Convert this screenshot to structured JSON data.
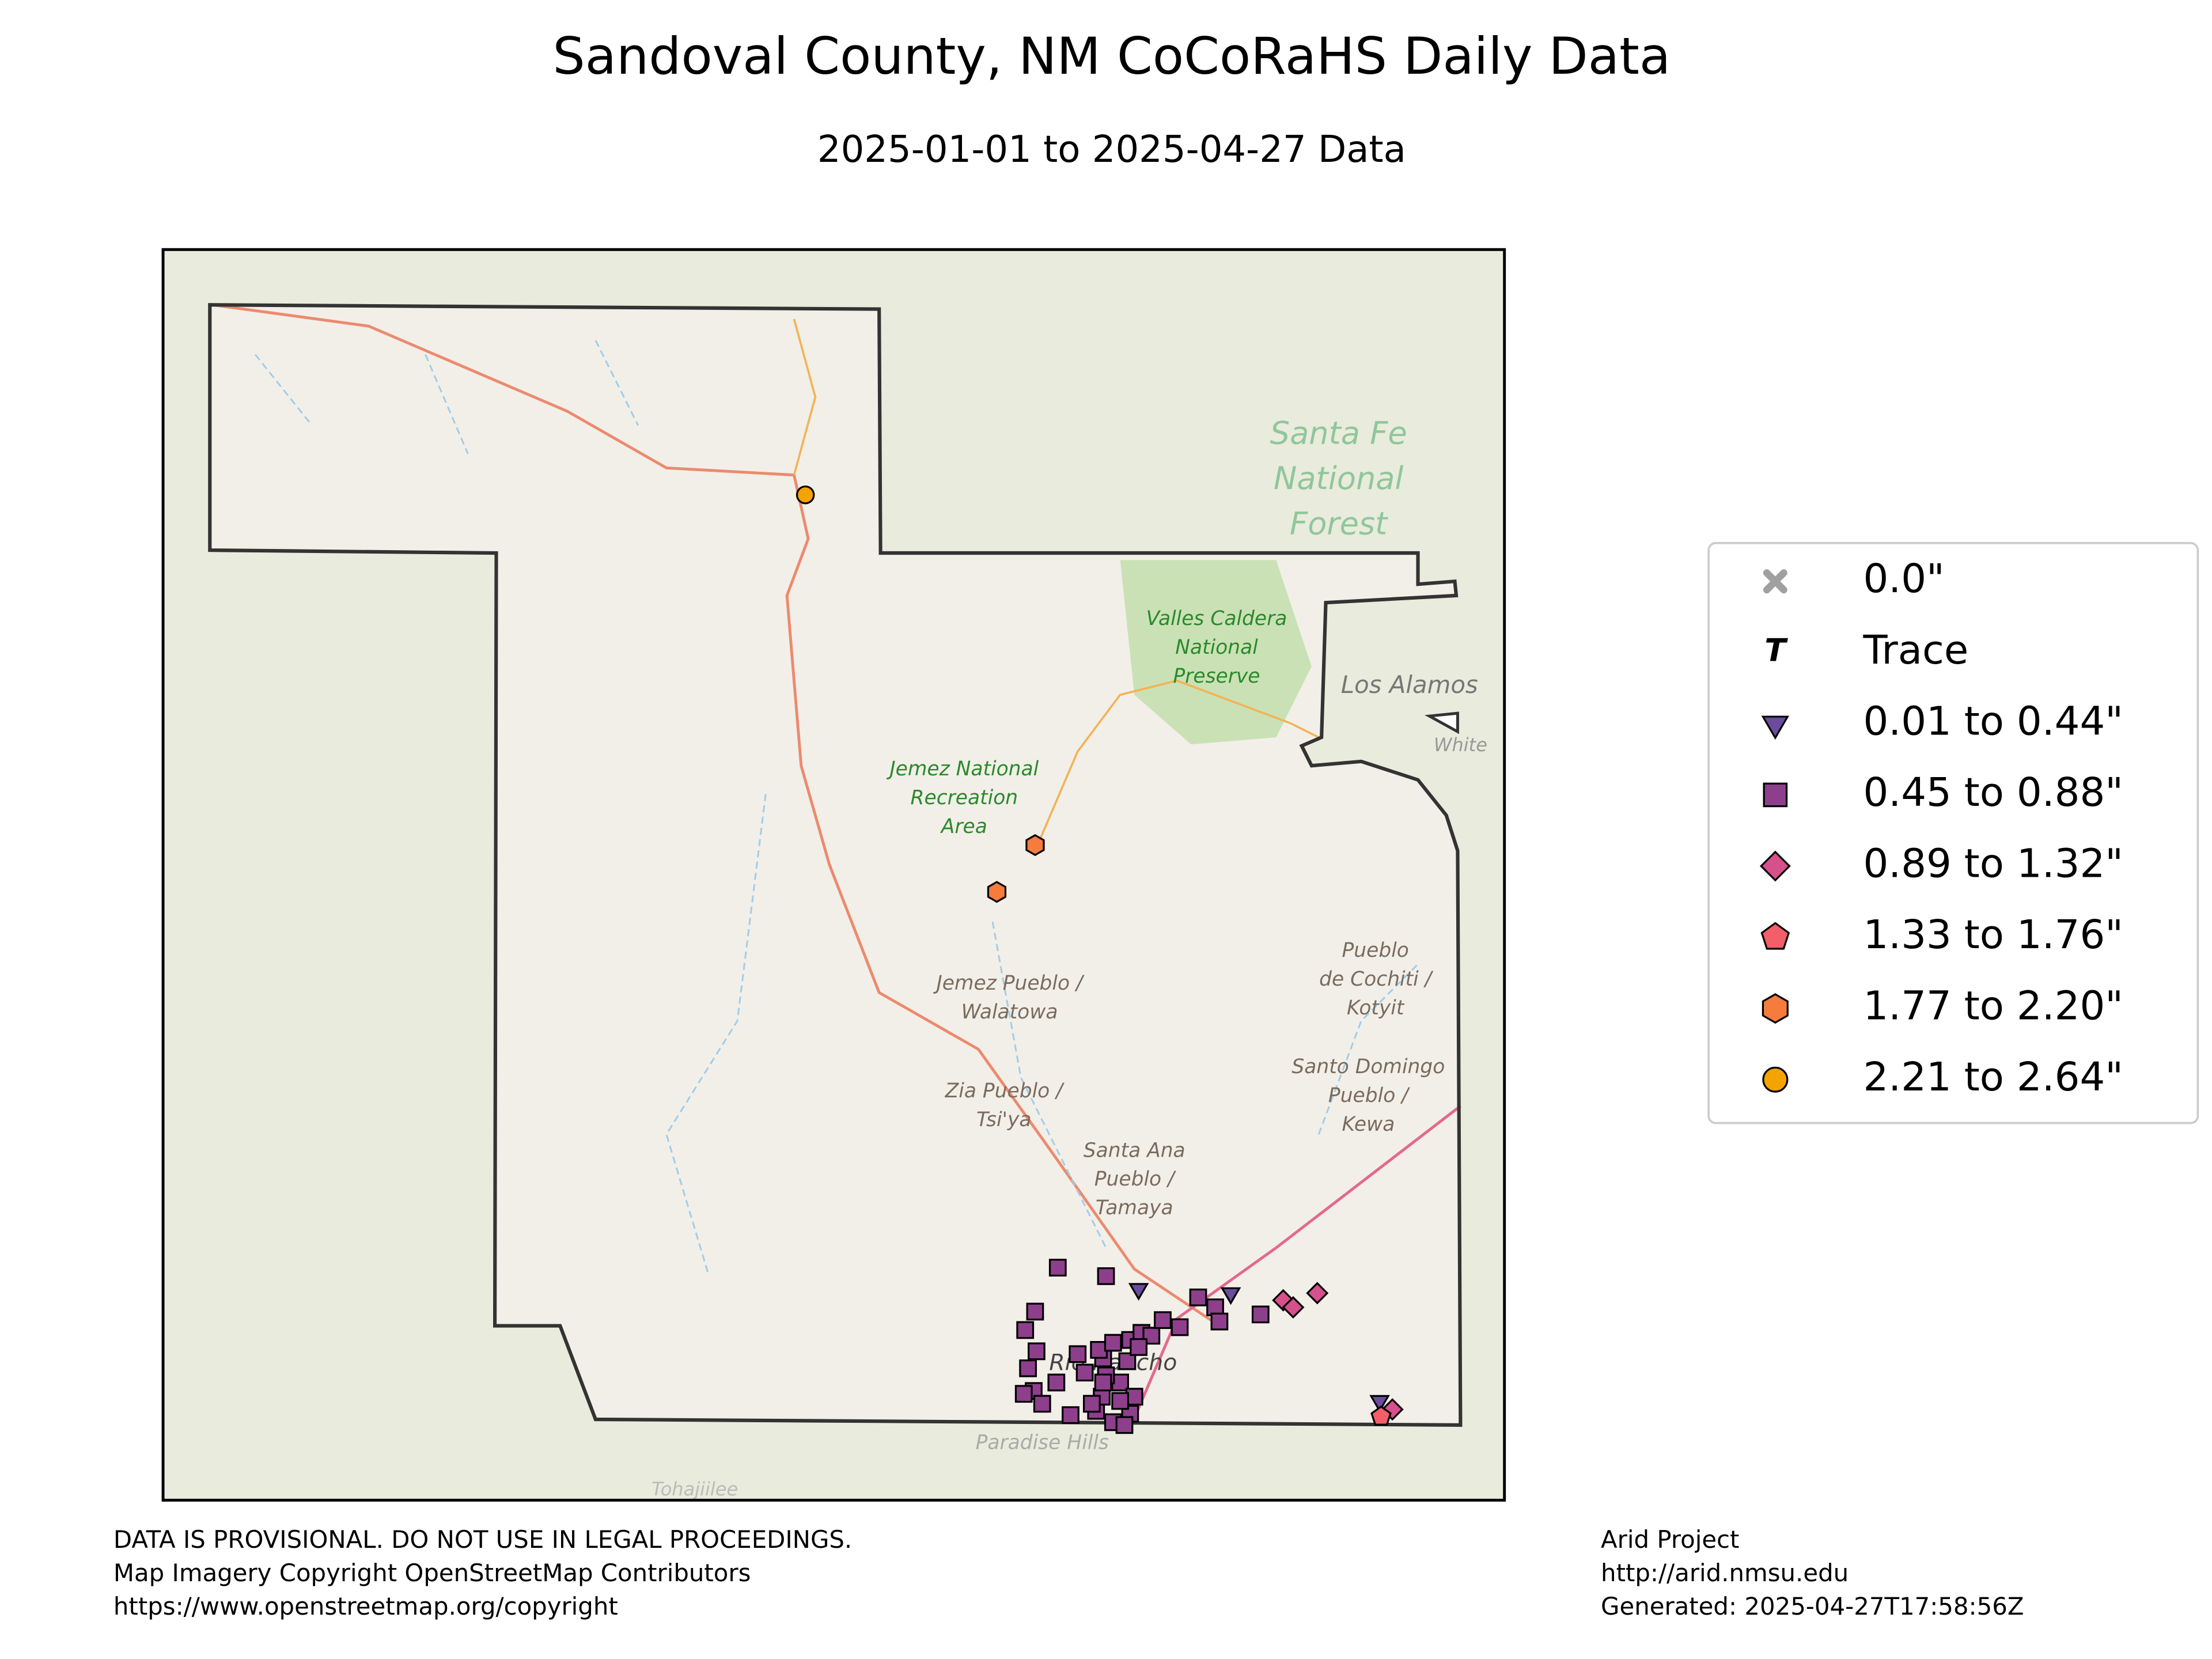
{
  "title": "Sandoval County, NM CoCoRaHS Daily Data",
  "subtitle": "2025-01-01 to 2025-04-27 Data",
  "map_labels": [
    {
      "lines": [
        "Santa Fe",
        "National",
        "Forest"
      ]
    },
    {
      "lines": [
        "Valles Caldera",
        "National",
        "Preserve"
      ]
    },
    {
      "lines": [
        "Jemez National",
        "Recreation",
        "Area"
      ]
    },
    {
      "lines": [
        "Jemez Pueblo /",
        "Walatowa"
      ]
    },
    {
      "lines": [
        "Zia Pueblo /",
        "Tsi'ya"
      ]
    },
    {
      "lines": [
        "Santa Ana",
        "Pueblo /",
        "Tamaya"
      ]
    },
    {
      "lines": [
        "Pueblo",
        "de Cochiti /",
        "Kotyit"
      ]
    },
    {
      "lines": [
        "Santo Domingo",
        "Pueblo /",
        "Kewa"
      ]
    },
    {
      "lines": [
        "Los Alamos"
      ]
    },
    {
      "lines": [
        "White"
      ]
    },
    {
      "lines": [
        "Rio Rancho"
      ]
    },
    {
      "lines": [
        "Paradise Hills"
      ]
    },
    {
      "lines": [
        "Tohajiilee"
      ]
    }
  ],
  "legend": {
    "entries": [
      {
        "label": "0.0\"",
        "marker": "x",
        "color": "#a0a0a0"
      },
      {
        "label": "Trace",
        "marker": "T",
        "color": "#000000"
      },
      {
        "label": "0.01 to 0.44\"",
        "marker": "triangle",
        "color": "#6a4c9c"
      },
      {
        "label": "0.45 to 0.88\"",
        "marker": "square",
        "color": "#8e3f8c"
      },
      {
        "label": "0.89 to 1.32\"",
        "marker": "diamond",
        "color": "#d6508c"
      },
      {
        "label": "1.33 to 1.76\"",
        "marker": "pentagon",
        "color": "#f25f68"
      },
      {
        "label": "1.77 to 2.20\"",
        "marker": "hexagon",
        "color": "#f57c3c"
      },
      {
        "label": "2.21 to 2.64\"",
        "marker": "circle",
        "color": "#f5a300"
      }
    ]
  },
  "footer": {
    "left": [
      "DATA IS PROVISIONAL. DO NOT USE IN LEGAL PROCEEDINGS.",
      "Map Imagery Copyright OpenStreetMap Contributors",
      "https://www.openstreetmap.org/copyright"
    ],
    "right": [
      "Arid Project",
      "http://arid.nmsu.edu",
      "Generated: 2025-04-27T17:58:56Z"
    ]
  }
}
